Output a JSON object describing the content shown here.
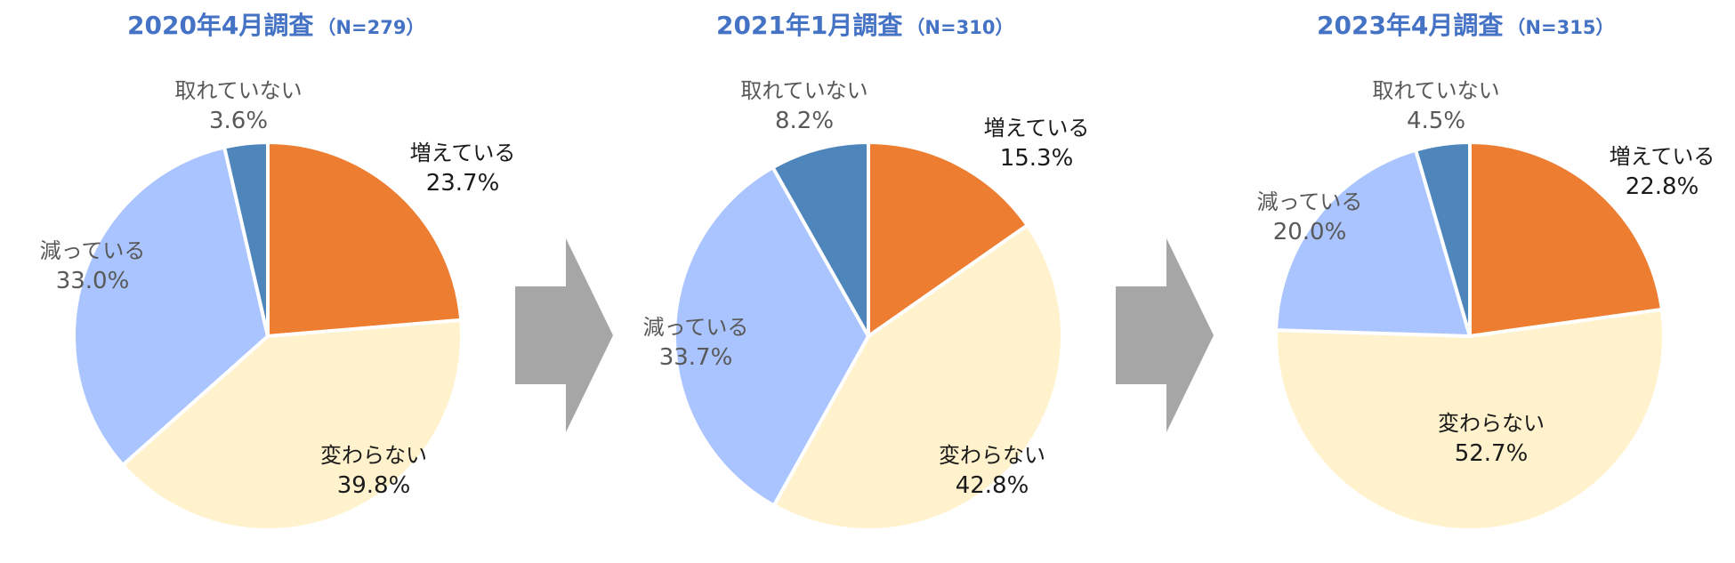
{
  "colors": {
    "title": "#4472C4",
    "arrow": "#A6A6A6",
    "slice_border": "#FFFFFF",
    "label_dark": "#1A1A1A",
    "label_gray": "#595959"
  },
  "chart_data": [
    {
      "type": "pie",
      "title": "2020年4月調査",
      "subtitle": "（N=279）",
      "slices": [
        {
          "label": "増えている",
          "value": 23.7,
          "display": "23.7%",
          "color": "#ED7D31"
        },
        {
          "label": "変わらない",
          "value": 39.8,
          "display": "39.8%",
          "color": "#FFF2CC"
        },
        {
          "label": "減っている",
          "value": 33.0,
          "display": "33.0%",
          "color": "#A9C4FF"
        },
        {
          "label": "取れていない",
          "value": 3.6,
          "display": "3.6%",
          "color": "#4E86BC"
        }
      ]
    },
    {
      "type": "pie",
      "title": "2021年1月調査",
      "subtitle": "（N=310）",
      "slices": [
        {
          "label": "増えている",
          "value": 15.3,
          "display": "15.3%",
          "color": "#ED7D31"
        },
        {
          "label": "変わらない",
          "value": 42.8,
          "display": "42.8%",
          "color": "#FFF2CC"
        },
        {
          "label": "減っている",
          "value": 33.7,
          "display": "33.7%",
          "color": "#A9C4FF"
        },
        {
          "label": "取れていない",
          "value": 8.2,
          "display": "8.2%",
          "color": "#4E86BC"
        }
      ]
    },
    {
      "type": "pie",
      "title": "2023年4月調査",
      "subtitle": "（N=315）",
      "slices": [
        {
          "label": "増えている",
          "value": 22.8,
          "display": "22.8%",
          "color": "#ED7D31"
        },
        {
          "label": "変わらない",
          "value": 52.7,
          "display": "52.7%",
          "color": "#FFF2CC"
        },
        {
          "label": "減っている",
          "value": 20.0,
          "display": "20.0%",
          "color": "#A9C4FF"
        },
        {
          "label": "取れていない",
          "value": 4.5,
          "display": "4.5%",
          "color": "#4E86BC"
        }
      ]
    }
  ]
}
